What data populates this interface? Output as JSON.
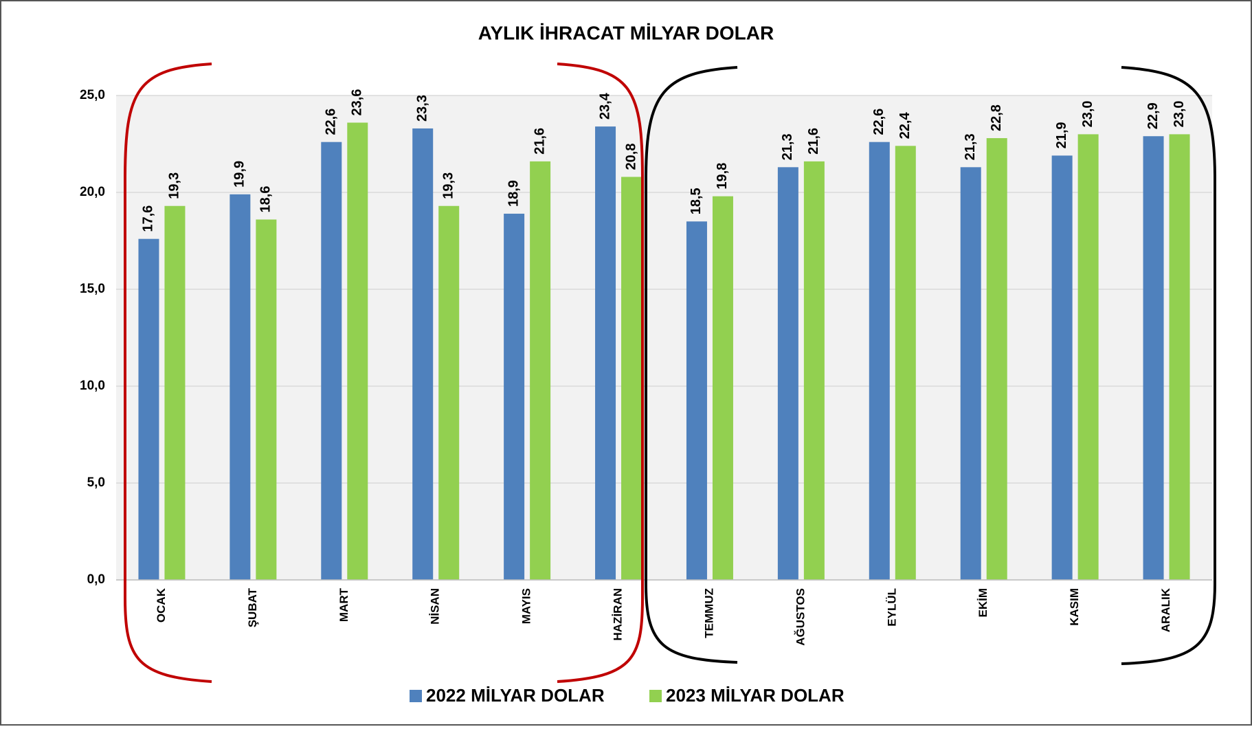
{
  "chart_data": {
    "type": "bar",
    "title": "AYLIK İHRACAT MİLYAR DOLAR",
    "categories": [
      "OCAK",
      "ŞUBAT",
      "MART",
      "NİSAN",
      "MAYIS",
      "HAZİRAN",
      "TEMMUZ",
      "AĞUSTOS",
      "EYLÜL",
      "EKİM",
      "KASIM",
      "ARALIK"
    ],
    "series": [
      {
        "name": "2022 MİLYAR DOLAR",
        "color": "#4f81bd",
        "values": [
          17.6,
          19.9,
          22.6,
          23.3,
          18.9,
          23.4,
          18.5,
          21.3,
          22.6,
          21.3,
          21.9,
          22.9
        ],
        "value_labels": [
          "17,6",
          "19,9",
          "22,6",
          "23,3",
          "18,9",
          "23,4",
          "18,5",
          "21,3",
          "22,6",
          "21,3",
          "21,9",
          "22,9"
        ]
      },
      {
        "name": "2023 MİLYAR DOLAR",
        "color": "#92d050",
        "values": [
          19.3,
          18.6,
          23.6,
          19.3,
          21.6,
          20.8,
          19.8,
          21.6,
          22.4,
          22.8,
          23.0,
          23.0
        ],
        "value_labels": [
          "19,3",
          "18,6",
          "23,6",
          "19,3",
          "21,6",
          "20,8",
          "19,8",
          "21,6",
          "22,4",
          "22,8",
          "23,0",
          "23,0"
        ]
      }
    ],
    "ylim": [
      0,
      25
    ],
    "yticks": [
      {
        "value": 0,
        "label": "0,0"
      },
      {
        "value": 5,
        "label": "5,0"
      },
      {
        "value": 10,
        "label": "10,0"
      },
      {
        "value": 15,
        "label": "15,0"
      },
      {
        "value": 20,
        "label": "20,0"
      },
      {
        "value": 25,
        "label": "25,0"
      }
    ],
    "grid": true,
    "legend": "bottom"
  }
}
